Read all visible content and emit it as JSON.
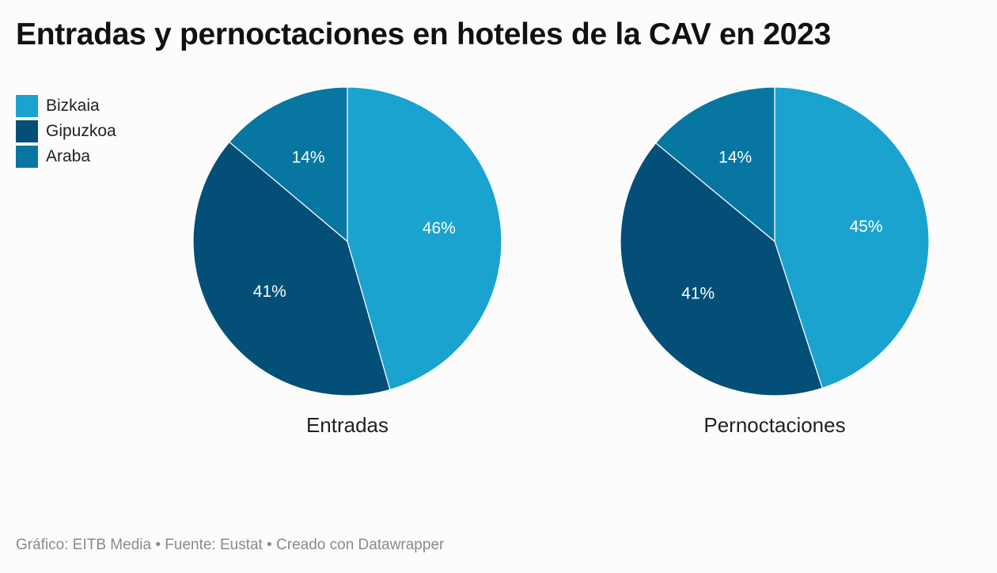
{
  "title": "Entradas y pernoctaciones en hoteles de la CAV en 2023",
  "footer": "Gráfico: EITB Media • Fuente: Eustat • Creado con Datawrapper",
  "colors": {
    "Bizkaia": "#1ba3d0",
    "Gipuzkoa": "#044f78",
    "Araba": "#0776a1"
  },
  "legend": [
    {
      "label": "Bizkaia"
    },
    {
      "label": "Gipuzkoa"
    },
    {
      "label": "Araba"
    }
  ],
  "chart_data": [
    {
      "type": "pie",
      "title": "Entradas",
      "categories": [
        "Bizkaia",
        "Gipuzkoa",
        "Araba"
      ],
      "values": [
        46,
        41,
        14
      ],
      "labels": [
        "46%",
        "41%",
        "14%"
      ]
    },
    {
      "type": "pie",
      "title": "Pernoctaciones",
      "categories": [
        "Bizkaia",
        "Gipuzkoa",
        "Araba"
      ],
      "values": [
        45,
        41,
        14
      ],
      "labels": [
        "45%",
        "41%",
        "14%"
      ]
    }
  ]
}
